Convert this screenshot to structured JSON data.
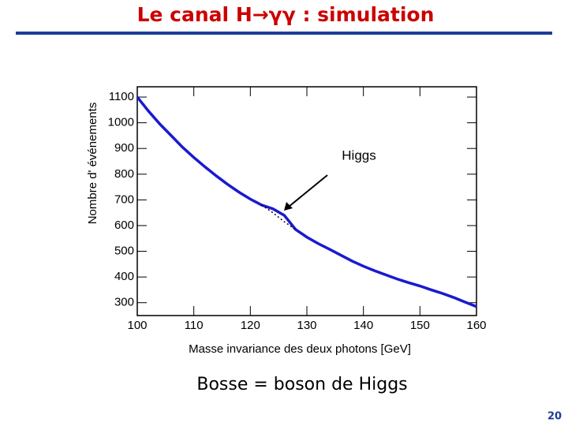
{
  "title": "Le canal H→γγ : simulation",
  "chart_data": {
    "type": "line",
    "x": [
      100,
      102,
      104,
      106,
      108,
      110,
      112,
      114,
      116,
      118,
      120,
      122,
      124,
      126,
      128,
      130,
      132,
      134,
      136,
      138,
      140,
      142,
      144,
      146,
      148,
      150,
      152,
      154,
      156,
      158,
      160
    ],
    "series": [
      {
        "color": "#1a1ad0",
        "style": "solid",
        "values": [
          1100,
          1045,
          995,
          950,
          905,
          865,
          828,
          793,
          760,
          730,
          703,
          680,
          665,
          640,
          585,
          555,
          530,
          508,
          485,
          462,
          442,
          424,
          408,
          392,
          378,
          365,
          350,
          336,
          320,
          302,
          285
        ]
      },
      {
        "color": "#000000",
        "style": "dotted",
        "values": [
          null,
          null,
          null,
          null,
          null,
          null,
          null,
          null,
          null,
          null,
          null,
          680,
          650,
          615,
          585,
          null,
          null,
          null,
          null,
          null,
          null,
          null,
          null,
          null,
          null,
          null,
          null,
          null,
          null,
          null,
          null
        ]
      }
    ],
    "xlim": [
      100,
      160
    ],
    "ylim": [
      250,
      1140
    ],
    "xticks": [
      100,
      110,
      120,
      130,
      140,
      150,
      160
    ],
    "yticks": [
      300,
      400,
      500,
      600,
      700,
      800,
      900,
      1000,
      1100
    ],
    "xlabel": "Masse invariance des deux photons [GeV]",
    "ylabel": "Nombre d' événements",
    "annotation": "Higgs"
  },
  "caption": "Bosse = boson de Higgs",
  "page_number": "20"
}
